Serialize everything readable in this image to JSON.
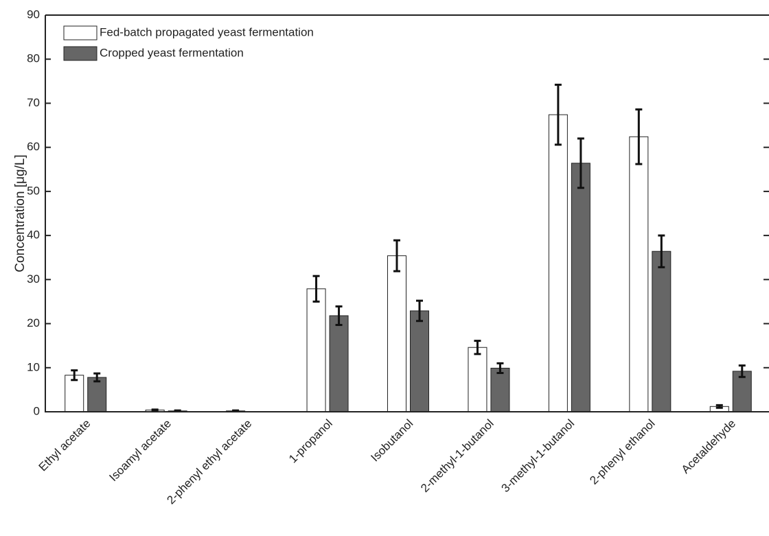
{
  "chart_data": {
    "type": "bar",
    "categories": [
      "Ethyl acetate",
      "Isoamyl acetate",
      "2-phenyl ethyl acetate",
      "1-propanol",
      "Isobutanol",
      "2-methyl-1-butanol",
      "3-methyl-1-butanol",
      "2-phenyl ethanol",
      "Acetaldehyde"
    ],
    "series": [
      {
        "name": "Fed-batch propagated yeast fermentation",
        "color": "#ffffff",
        "values": [
          8.3,
          0.4,
          0.2,
          27.9,
          35.4,
          14.6,
          67.4,
          62.4,
          1.2
        ],
        "errors": [
          1.1,
          0.1,
          0.1,
          2.9,
          3.5,
          1.5,
          6.8,
          6.2,
          0.3
        ]
      },
      {
        "name": "Cropped yeast fermentation",
        "color": "#666666",
        "values": [
          7.8,
          0.2,
          0,
          21.8,
          22.9,
          9.9,
          56.4,
          36.4,
          9.2
        ],
        "errors": [
          0.9,
          0.1,
          0,
          2.1,
          2.3,
          1.1,
          5.6,
          3.6,
          1.3
        ]
      }
    ],
    "y_label": "Concentration [μg/L]",
    "ylim": [
      0,
      90
    ],
    "yticks": [
      0,
      10,
      20,
      30,
      40,
      50,
      60,
      70,
      80,
      90
    ],
    "legend": "upper-left"
  }
}
